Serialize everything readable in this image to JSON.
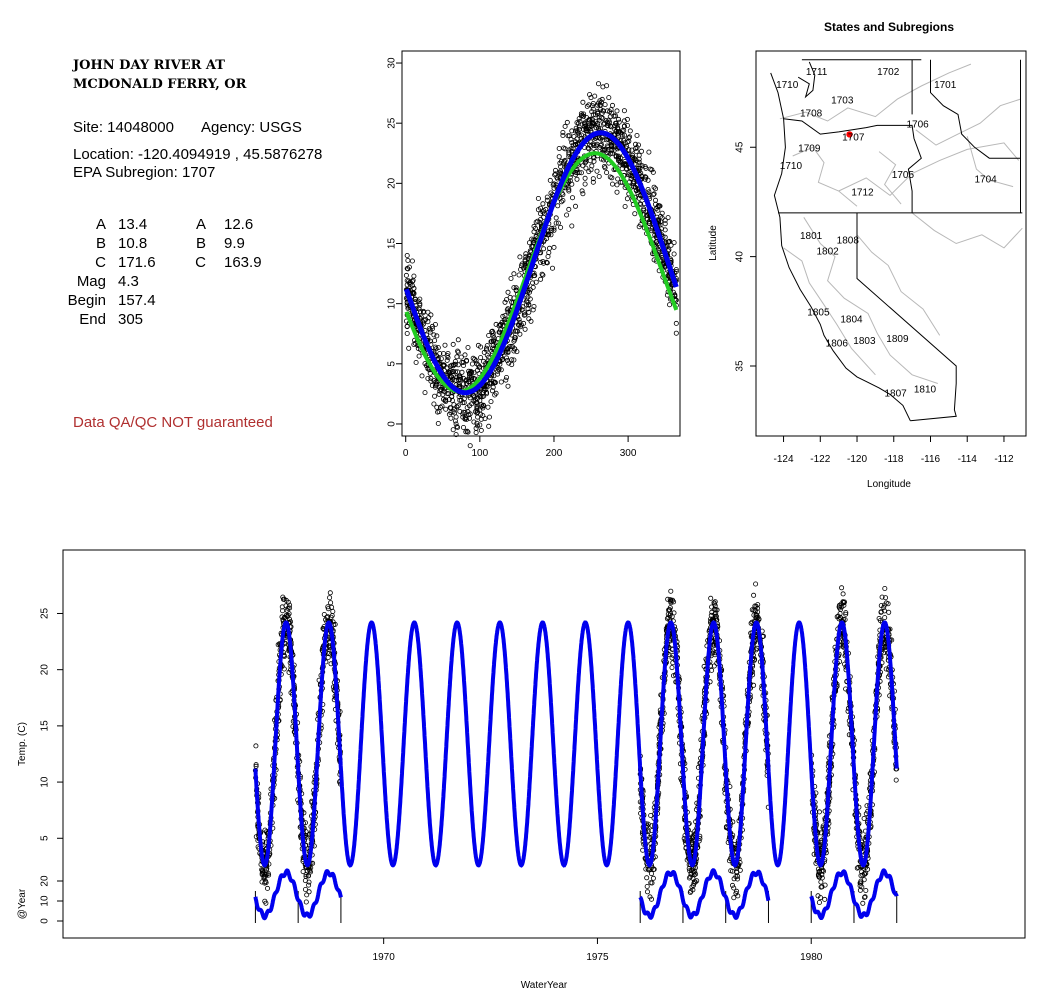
{
  "site": {
    "title_line1": "JOHN DAY RIVER AT",
    "title_line2": "MCDONALD FERRY, OR",
    "site_label": "Site: 14048000",
    "agency_label": "Agency: USGS",
    "location_label": "Location: -120.4094919 , 45.5876278",
    "subregion_label": "EPA Subregion: 1707"
  },
  "params": {
    "col1": [
      {
        "name": "A",
        "value": "13.4"
      },
      {
        "name": "B",
        "value": "10.8"
      },
      {
        "name": "C",
        "value": "171.6"
      },
      {
        "name": "Mag",
        "value": "4.3"
      },
      {
        "name": "Begin",
        "value": "157.4"
      },
      {
        "name": "End",
        "value": "305"
      }
    ],
    "col2": [
      {
        "name": "A",
        "value": "12.6"
      },
      {
        "name": "B",
        "value": "9.9"
      },
      {
        "name": "C",
        "value": "163.9"
      }
    ]
  },
  "qa_note": "Data QA/QC NOT guaranteed",
  "chart_data": [
    {
      "type": "scatter",
      "title": "",
      "xlabel": "",
      "ylabel": "",
      "xlim": [
        -5,
        370
      ],
      "ylim": [
        -1,
        31
      ],
      "xticks": [
        0,
        100,
        200,
        300
      ],
      "yticks": [
        0,
        5,
        10,
        15,
        20,
        25,
        30
      ],
      "series": [
        {
          "name": "",
          "kind": "points",
          "model": {
            "A": 13.4,
            "B": 10.8,
            "C": 171.6
          },
          "color": "#000000"
        },
        {
          "name": "",
          "kind": "line",
          "model": {
            "A": 12.6,
            "B": 9.9,
            "C": 163.9
          },
          "color": "#22cc22"
        },
        {
          "name": "",
          "kind": "line",
          "model": {
            "A": 13.4,
            "B": 10.8,
            "C": 171.6
          },
          "color": "#0000ee"
        }
      ]
    },
    {
      "type": "map",
      "title": "States and Subregions",
      "xlabel": "Longitude",
      "ylabel": "Latitude",
      "xlim": [
        -125.5,
        -110.8
      ],
      "ylim": [
        31.8,
        49.4
      ],
      "xticks": [
        -124,
        -122,
        -120,
        -118,
        -116,
        -114,
        -112
      ],
      "yticks": [
        35,
        40,
        45
      ],
      "site_point": {
        "lon": -120.4094919,
        "lat": 45.5876278,
        "color": "#ff0000"
      },
      "regions": [
        {
          "label": "1711",
          "lon": -122.2,
          "lat": 48.3
        },
        {
          "label": "1702",
          "lon": -118.3,
          "lat": 48.3
        },
        {
          "label": "1710",
          "lon": -123.8,
          "lat": 47.7
        },
        {
          "label": "1701",
          "lon": -115.2,
          "lat": 47.7
        },
        {
          "label": "1703",
          "lon": -120.8,
          "lat": 47.0
        },
        {
          "label": "1708",
          "lon": -122.5,
          "lat": 46.4
        },
        {
          "label": "1706",
          "lon": -116.7,
          "lat": 45.9
        },
        {
          "label": "1707",
          "lon": -120.2,
          "lat": 45.3
        },
        {
          "label": "1709",
          "lon": -122.6,
          "lat": 44.8
        },
        {
          "label": "1710",
          "lon": -123.6,
          "lat": 44.0
        },
        {
          "label": "1705",
          "lon": -117.5,
          "lat": 43.6
        },
        {
          "label": "1704",
          "lon": -113.0,
          "lat": 43.4
        },
        {
          "label": "1712",
          "lon": -119.7,
          "lat": 42.8
        },
        {
          "label": "1801",
          "lon": -122.5,
          "lat": 40.8
        },
        {
          "label": "1808",
          "lon": -120.5,
          "lat": 40.6
        },
        {
          "label": "1802",
          "lon": -121.6,
          "lat": 40.1
        },
        {
          "label": "1805",
          "lon": -122.1,
          "lat": 37.3
        },
        {
          "label": "1804",
          "lon": -120.3,
          "lat": 37.0
        },
        {
          "label": "1806",
          "lon": -121.1,
          "lat": 35.9
        },
        {
          "label": "1803",
          "lon": -119.6,
          "lat": 36.0
        },
        {
          "label": "1809",
          "lon": -117.8,
          "lat": 36.1
        },
        {
          "label": "1807",
          "lon": -117.9,
          "lat": 33.6
        },
        {
          "label": "1810",
          "lon": -116.3,
          "lat": 33.8
        }
      ]
    },
    {
      "type": "line",
      "title": "",
      "xlabel": "WaterYear",
      "ylabel": "Temp. (C)",
      "ylabel_lower": "@Year",
      "xlim": [
        1962.5,
        1985.0
      ],
      "xticks": [
        1970,
        1975,
        1980
      ],
      "yticks": [
        5,
        10,
        15,
        20,
        25
      ],
      "yticks_lower": [
        0,
        10,
        20
      ],
      "model": {
        "A": 13.4,
        "B": 10.8,
        "C": 171.6
      },
      "data_year_ranges": [
        [
          1967.0,
          1969.0
        ],
        [
          1976.0,
          1979.0
        ],
        [
          1980.0,
          1982.0
        ]
      ],
      "model_range": [
        1967.0,
        1982.0
      ],
      "series": [
        {
          "name": "",
          "kind": "points",
          "color": "#000000"
        },
        {
          "name": "",
          "kind": "line",
          "color": "#0000ee"
        },
        {
          "name": "",
          "kind": "line",
          "color": "#0000ee"
        }
      ]
    }
  ]
}
